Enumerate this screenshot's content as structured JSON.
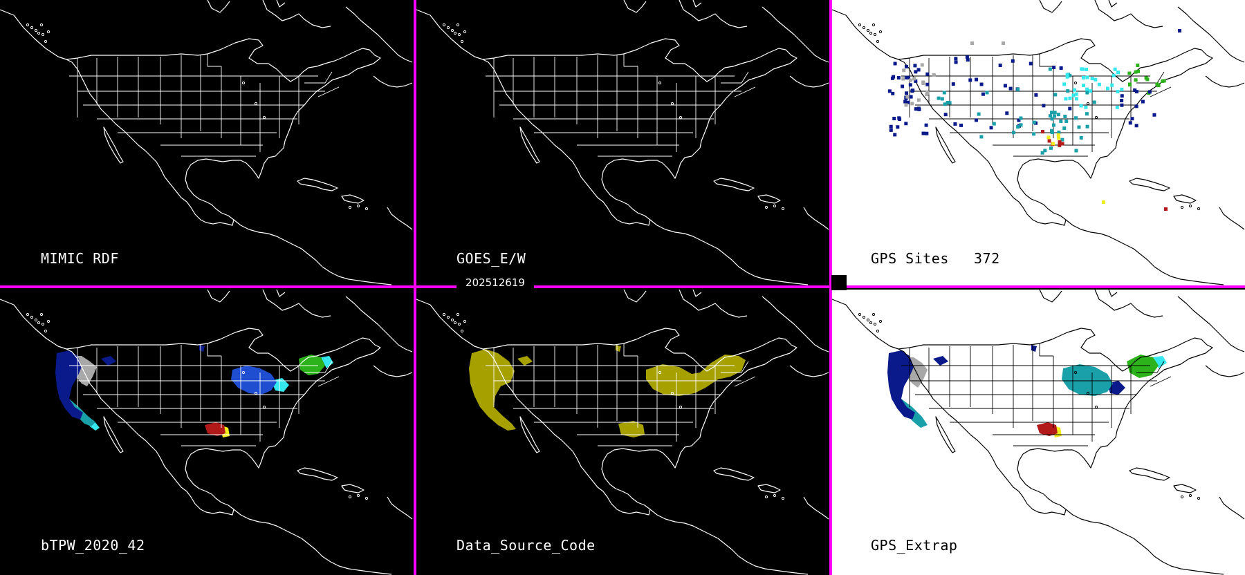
{
  "timestamp": "202512619",
  "colors": {
    "divider": "#ff00ff",
    "dark_background": "#000000",
    "light_background": "#ffffff",
    "palette": {
      "navy": "#0a1a8a",
      "blue": "#1f4fd0",
      "teal": "#1aa0a8",
      "cyan": "#35e8ee",
      "gray": "#a8a8a8",
      "green": "#2cb21a",
      "yellow": "#f2ec1a",
      "red": "#b21a1a",
      "olive": "#a6a000"
    }
  },
  "panels": [
    {
      "title": "MIMIC RDF",
      "theme": "dark",
      "layer": "none"
    },
    {
      "title": "GOES_E/W",
      "theme": "dark",
      "layer": "none"
    },
    {
      "title": "GPS Sites",
      "count": "372",
      "theme": "light",
      "layer": "sites"
    },
    {
      "title": "bTPW_2020_42",
      "theme": "dark",
      "layer": "tpw"
    },
    {
      "title": "Data_Source_Code",
      "theme": "dark",
      "layer": "source"
    },
    {
      "title": "GPS_Extrap",
      "theme": "light",
      "layer": "extrap"
    }
  ]
}
